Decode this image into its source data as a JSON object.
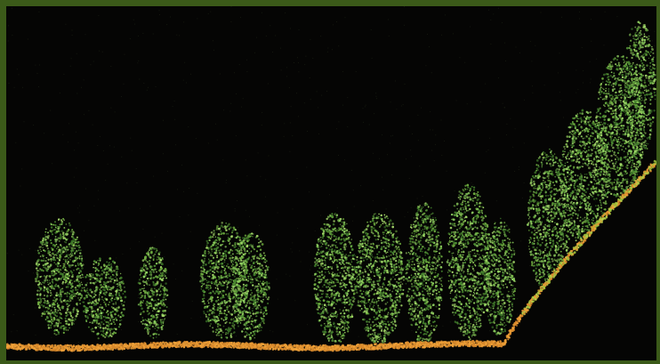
{
  "image": {
    "subject": "lidar-point-cloud-cross-section",
    "colors": {
      "background": "#050504",
      "frame": "#3b5a19",
      "vegetation": [
        "#4f8f34",
        "#6fae3f",
        "#8fd061",
        "#3f7a2a",
        "#a6d96a"
      ],
      "ground": [
        "#d98a2b",
        "#f0a23a",
        "#b8d14a",
        "#9bbf3a"
      ]
    },
    "icons": {
      "vegetation_points": "tree-canopy-points",
      "ground_points": "ground-surface-points"
    }
  }
}
